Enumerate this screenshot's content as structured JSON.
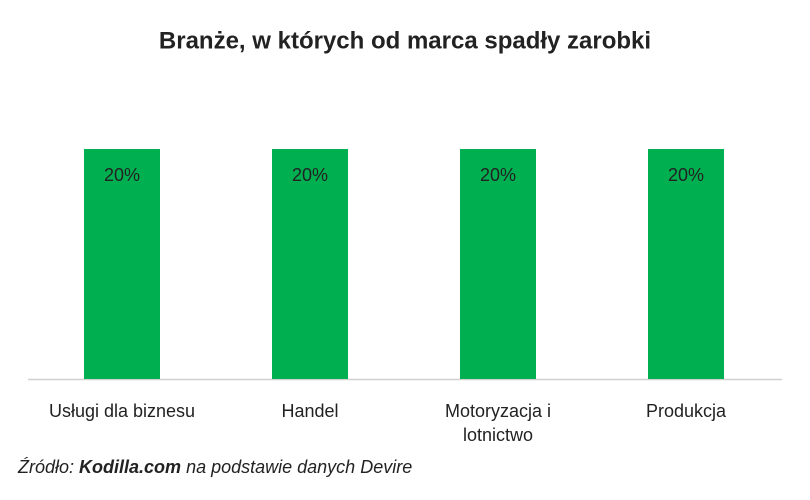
{
  "chart_data": {
    "type": "bar",
    "title": "Branże, w których od marca spadły zarobki",
    "categories": [
      "Usługi dla biznesu",
      "Handel",
      "Motoryzacja i lotnictwo",
      "Produkcja"
    ],
    "values": [
      20,
      20,
      20,
      20
    ],
    "value_labels": [
      "20%",
      "20%",
      "20%",
      "20%"
    ],
    "color": "#00b050"
  },
  "source": {
    "label": "Źródło:",
    "name": "Kodilla.com",
    "text": "na podstawie danych Devire"
  }
}
